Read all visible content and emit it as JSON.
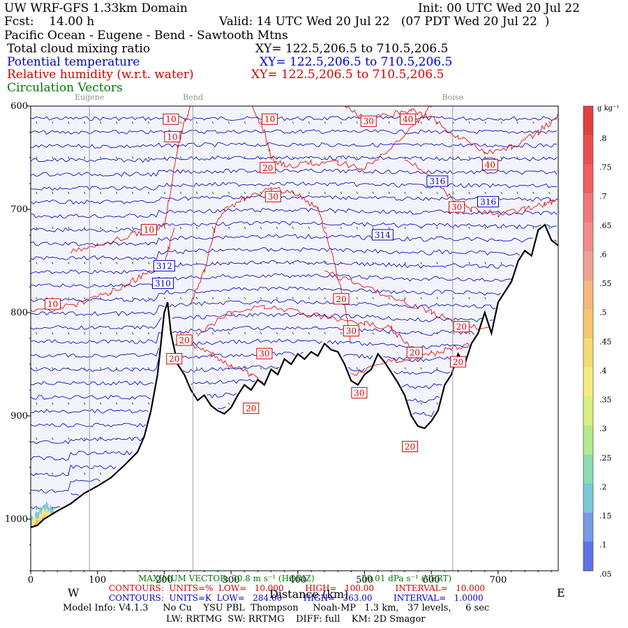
{
  "header": {
    "line1_left": "UW WRF-GFS 1.33km Domain",
    "line1_right": "Init: 00 UTC Wed 20 Jul 22",
    "line2_fcst": "Fcst:    14.00 h",
    "line2_valid": "Valid: 14 UTC Wed 20 Jul 22   (07 PDT Wed 20 Jul 22  )",
    "line3": "Pacific Ocean - Eugene - Bend - Sawtooth Mtns",
    "var1": "Total cloud mixing ratio",
    "var1_xy": "XY= 122.5,206.5 to 710.5,206.5",
    "var2": "Potential temperature",
    "var2_xy": "XY= 122.5,206.5 to 710.5,206.5",
    "var3": "Relative humidity (w.r.t. water)",
    "var3_xy": "XY= 122.5,206.5 to 710.5,206.5",
    "var4": "Circulation Vectors"
  },
  "colors": {
    "theta": "#1010c0",
    "rh": "#e01010",
    "vectors": "#008000",
    "terrain": "#000000",
    "background_fill": "#f3f3fb"
  },
  "chart_data": {
    "type": "line",
    "xlabel": "Distance (km)",
    "ylabel": "",
    "xlim": [
      0,
      790
    ],
    "ylim": [
      1050,
      600
    ],
    "x_ticks": [
      0,
      100,
      200,
      300,
      400,
      500,
      600,
      700
    ],
    "y_ticks": [
      600,
      700,
      800,
      900,
      1000
    ],
    "y_tick_labels": [
      "600",
      "700",
      "800",
      "900",
      "1000"
    ],
    "direction_left": "W",
    "direction_right": "E",
    "locations": [
      {
        "name": "Eugene",
        "x": 88
      },
      {
        "name": "Bend",
        "x": 243
      },
      {
        "name": "Boise",
        "x": 632
      }
    ],
    "terrain": {
      "x": [
        0,
        10,
        20,
        40,
        60,
        80,
        100,
        120,
        140,
        160,
        170,
        180,
        190,
        200,
        205,
        210,
        220,
        230,
        240,
        250,
        260,
        270,
        280,
        290,
        300,
        310,
        320,
        330,
        340,
        350,
        360,
        370,
        380,
        390,
        400,
        410,
        420,
        430,
        440,
        450,
        460,
        470,
        480,
        490,
        500,
        510,
        520,
        530,
        540,
        550,
        560,
        570,
        580,
        590,
        600,
        610,
        620,
        630,
        640,
        650,
        660,
        670,
        680,
        690,
        700,
        710,
        720,
        730,
        740,
        750,
        760,
        770,
        780,
        790
      ],
      "pressure": [
        1008,
        1006,
        1000,
        992,
        985,
        975,
        968,
        960,
        948,
        935,
        920,
        895,
        860,
        800,
        790,
        820,
        850,
        860,
        875,
        885,
        880,
        890,
        895,
        898,
        892,
        880,
        870,
        875,
        865,
        870,
        855,
        860,
        845,
        850,
        840,
        845,
        838,
        842,
        830,
        836,
        838,
        850,
        866,
        870,
        860,
        855,
        840,
        848,
        858,
        868,
        880,
        900,
        910,
        912,
        905,
        895,
        870,
        860,
        840,
        850,
        830,
        820,
        800,
        820,
        790,
        780,
        770,
        750,
        740,
        745,
        720,
        715,
        730,
        735
      ]
    },
    "theta_contours": {
      "units": "K",
      "low": "284.00",
      "high": "363.00",
      "interval": "1.0000",
      "labels": [
        {
          "text": "312",
          "x": 200,
          "p": 755
        },
        {
          "text": "310",
          "x": 198,
          "p": 772
        },
        {
          "text": "314",
          "x": 527,
          "p": 725
        },
        {
          "text": "316",
          "x": 609,
          "p": 673
        },
        {
          "text": "316",
          "x": 685,
          "p": 693
        }
      ]
    },
    "rh_contours": {
      "units": "%",
      "low": "10.000",
      "high": "100.00",
      "interval": "10.000",
      "labels": [
        {
          "text": "10",
          "x": 210,
          "p": 613
        },
        {
          "text": "10",
          "x": 212,
          "p": 630
        },
        {
          "text": "10",
          "x": 358,
          "p": 613
        },
        {
          "text": "30",
          "x": 506,
          "p": 615
        },
        {
          "text": "40",
          "x": 565,
          "p": 613
        },
        {
          "text": "20",
          "x": 355,
          "p": 660
        },
        {
          "text": "30",
          "x": 363,
          "p": 688
        },
        {
          "text": "40",
          "x": 688,
          "p": 657
        },
        {
          "text": "30",
          "x": 638,
          "p": 698
        },
        {
          "text": "10",
          "x": 177,
          "p": 720
        },
        {
          "text": "10",
          "x": 33,
          "p": 792
        },
        {
          "text": "20",
          "x": 465,
          "p": 787
        },
        {
          "text": "20",
          "x": 230,
          "p": 827
        },
        {
          "text": "20",
          "x": 215,
          "p": 845
        },
        {
          "text": "30",
          "x": 350,
          "p": 840
        },
        {
          "text": "30",
          "x": 480,
          "p": 818
        },
        {
          "text": "20",
          "x": 575,
          "p": 839
        },
        {
          "text": "20",
          "x": 645,
          "p": 814
        },
        {
          "text": "20",
          "x": 640,
          "p": 848
        },
        {
          "text": "30",
          "x": 492,
          "p": 878
        },
        {
          "text": "20",
          "x": 330,
          "p": 893
        },
        {
          "text": "20",
          "x": 568,
          "p": 930
        }
      ]
    },
    "colorbar": {
      "units": "g kg⁻¹",
      "ticks": [
        ".8",
        ".75",
        ".7",
        ".65",
        ".6",
        ".55",
        ".5",
        ".45",
        ".4",
        ".35",
        ".3",
        ".25",
        ".2",
        ".15",
        ".1",
        ".05"
      ],
      "colors": [
        "#e04040",
        "#e85050",
        "#f06060",
        "#f07878",
        "#f08c8c",
        "#f0a090",
        "#f2b880",
        "#f4c870",
        "#f4dc70",
        "#f4ec80",
        "#d8ee80",
        "#b4e88c",
        "#8cdcb0",
        "#78c8d8",
        "#7898e8",
        "#6070e8"
      ]
    }
  },
  "footer": {
    "max_vector": "MAXIMUM VECTOR: 30.8 m s⁻¹ (HORIZ)",
    "max_vector_vert": "50.01 dPa s⁻¹ (VERT)",
    "rh_line": "CONTOURS:  UNITS=%  LOW=   10.000        HIGH=   100.00        INTERVAL=   10.000",
    "theta_line": "CONTOURS:  UNITS=K  LOW=   284.00        HIGH=   363.00        INTERVAL=   1.0000",
    "model_info": "Model Info: V4.1.3     No Cu    YSU PBL  Thompson     Noah-MP   1.3 km,   37 levels,     6 sec",
    "model_info2": "LW: RRTMG  SW: RRTMG    DIFF: full    KM: 2D Smagor"
  }
}
